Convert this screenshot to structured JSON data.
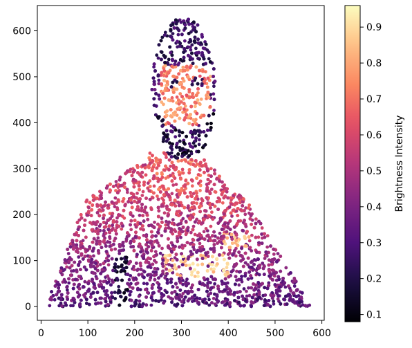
{
  "chart_data": {
    "type": "scatter",
    "title": "",
    "xlabel": "",
    "ylabel": "",
    "xlim": [
      -8,
      605
    ],
    "ylim": [
      -30,
      655
    ],
    "xticks": [
      0,
      100,
      200,
      300,
      400,
      500,
      600
    ],
    "yticks": [
      0,
      100,
      200,
      300,
      400,
      500,
      600
    ],
    "colormap": "magma",
    "colorbar": {
      "label": "Brightness Intensity",
      "range": [
        0.08,
        0.96
      ],
      "ticks": [
        0.1,
        0.2,
        0.3,
        0.4,
        0.5,
        0.6,
        0.7,
        0.8,
        0.9
      ]
    },
    "description_of_points": "dense scatter of roughly 10,000 points forming a portrait: head with dark hair and beard (brightness ~0.2), face (~0.75), coral shirt shoulders (~0.6), purple lower shirt (~0.35) with a light logo text band around y≈90 (~0.85)",
    "regions": [
      {
        "part": "shirt",
        "x_range": [
          10,
          578
        ],
        "y_range": [
          0,
          320
        ],
        "brightness": [
          0.2,
          0.7
        ]
      },
      {
        "part": "neck",
        "x_range": [
          225,
          350
        ],
        "y_range": [
          240,
          330
        ],
        "brightness": [
          0.6,
          0.75
        ]
      },
      {
        "part": "face",
        "x_range": [
          240,
          375
        ],
        "y_range": [
          320,
          560
        ],
        "brightness": [
          0.65,
          0.85
        ]
      },
      {
        "part": "hair",
        "x_range": [
          235,
          365
        ],
        "y_range": [
          520,
          628
        ],
        "brightness": [
          0.12,
          0.3
        ]
      },
      {
        "part": "beard",
        "x_range": [
          245,
          345
        ],
        "y_range": [
          330,
          430
        ],
        "brightness": [
          0.1,
          0.3
        ]
      },
      {
        "part": "logo",
        "x_range": [
          265,
          400
        ],
        "y_range": [
          65,
          110
        ],
        "brightness": [
          0.8,
          0.95
        ]
      }
    ]
  }
}
